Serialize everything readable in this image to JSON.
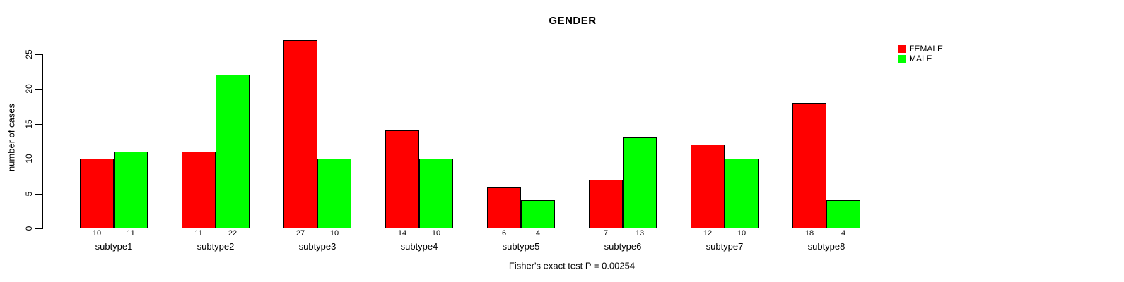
{
  "title": "GENDER",
  "ylabel": "number of cases",
  "caption": "Fisher's exact test P = 0.00254",
  "legend": {
    "items": [
      {
        "label": "FEMALE",
        "color": "#ff0000"
      },
      {
        "label": "MALE",
        "color": "#00ff00"
      }
    ]
  },
  "chart_data": {
    "type": "bar",
    "title": "GENDER",
    "ylabel": "number of cases",
    "xlabel": "",
    "categories": [
      "subtype1",
      "subtype2",
      "subtype3",
      "subtype4",
      "subtype5",
      "subtype6",
      "subtype7",
      "subtype8"
    ],
    "series": [
      {
        "name": "FEMALE",
        "color": "#ff0000",
        "values": [
          10,
          11,
          27,
          14,
          6,
          7,
          12,
          18
        ]
      },
      {
        "name": "MALE",
        "color": "#00ff00",
        "values": [
          11,
          22,
          10,
          10,
          4,
          13,
          10,
          4
        ]
      }
    ],
    "bar_value_labels": [
      [
        10,
        11
      ],
      [
        11,
        22
      ],
      [
        27,
        10
      ],
      [
        14,
        10
      ],
      [
        6,
        4
      ],
      [
        7,
        13
      ],
      [
        12,
        10
      ],
      [
        18,
        4
      ]
    ],
    "yticks": [
      0,
      5,
      10,
      15,
      20,
      25
    ],
    "ylim": [
      0,
      27
    ],
    "grid": false,
    "legend_position": "top-right",
    "annotation": "Fisher's exact test P = 0.00254"
  }
}
